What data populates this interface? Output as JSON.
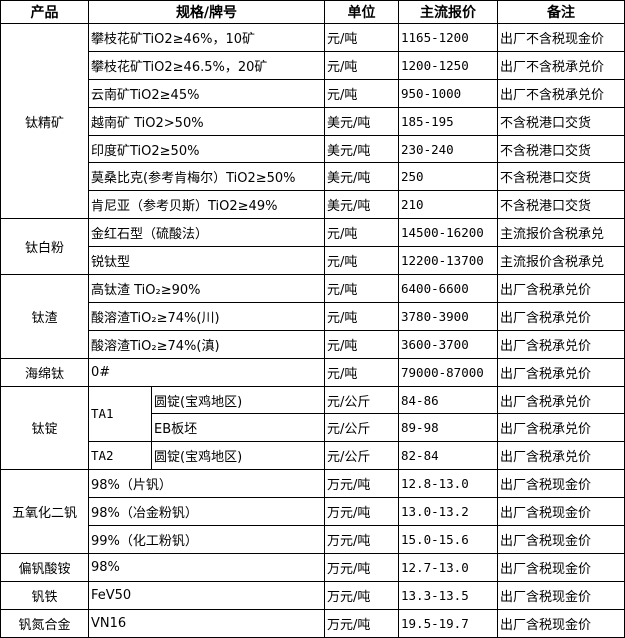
{
  "headers": {
    "product": "产品",
    "spec": "规格/牌号",
    "unit": "单位",
    "price": "主流报价",
    "note": "备注"
  },
  "groups": [
    {
      "product": "钛精矿",
      "rows": [
        {
          "spec": "攀枝花矿TiO2≥46%，10矿",
          "unit": "元/吨",
          "price": "1165-1200",
          "note": "出厂不含税现金价"
        },
        {
          "spec": "攀枝花矿TiO2≥46.5%，20矿",
          "unit": "元/吨",
          "price": "1200-1250",
          "note": "出厂不含税承兑价"
        },
        {
          "spec": "云南矿TiO2≥45%",
          "unit": "元/吨",
          "price": "950-1000",
          "note": "出厂不含税承兑价"
        },
        {
          "spec": "越南矿 TiO2>50%",
          "unit": "美元/吨",
          "price": "185-195",
          "note": "不含税港口交货"
        },
        {
          "spec": "印度矿TiO2≥50%",
          "unit": "美元/吨",
          "price": "230-240",
          "note": "不含税港口交货"
        },
        {
          "spec": "莫桑比克(参考肯梅尔）TiO2≥50%",
          "unit": "美元/吨",
          "price": "250",
          "note": "不含税港口交货"
        },
        {
          "spec": "肯尼亚（参考贝斯）TiO2≥49%",
          "unit": "美元/吨",
          "price": "210",
          "note": "不含税港口交货"
        }
      ]
    },
    {
      "product": "钛白粉",
      "rows": [
        {
          "spec": "金红石型（硫酸法）",
          "unit": "元/吨",
          "price": "14500-16200",
          "note": "主流报价含税承兑"
        },
        {
          "spec": "锐钛型",
          "unit": "元/吨",
          "price": "12200-13700",
          "note": "主流报价含税承兑"
        }
      ]
    },
    {
      "product": "钛渣",
      "rows": [
        {
          "spec": "高钛渣 TiO₂≥90%",
          "unit": "元/吨",
          "price": "6400-6600",
          "note": "出厂含税承兑价"
        },
        {
          "spec": "酸溶渣TiO₂≥74%(川)",
          "unit": "元/吨",
          "price": "3780-3900",
          "note": "出厂含税承兑价"
        },
        {
          "spec": "酸溶渣TiO₂≥74%(滇)",
          "unit": "元/吨",
          "price": "3600-3700",
          "note": "出厂含税承兑价"
        }
      ]
    },
    {
      "product": "海绵钛",
      "rows": [
        {
          "spec": "0#",
          "unit": "元/吨",
          "price": "79000-87000",
          "note": "出厂含税承兑价"
        }
      ]
    },
    {
      "product": "钛锭",
      "rows": [
        {
          "grade": "TA1",
          "grade_span": 2,
          "spec": "圆锭(宝鸡地区)",
          "unit": "元/公斤",
          "price": "84-86",
          "note": "出厂含税承兑价"
        },
        {
          "spec": "EB板坯",
          "unit": "元/公斤",
          "price": "89-98",
          "note": "出厂含税承兑价"
        },
        {
          "grade": "TA2",
          "grade_span": 1,
          "spec": "圆锭(宝鸡地区)",
          "unit": "元/公斤",
          "price": "82-84",
          "note": "出厂含税承兑价"
        }
      ]
    },
    {
      "product": "五氧化二钒",
      "rows": [
        {
          "spec": "98%（片钒）",
          "unit": "万元/吨",
          "price": "12.8-13.0",
          "note": "出厂含税现金价"
        },
        {
          "spec": "98%（冶金粉钒）",
          "unit": "万元/吨",
          "price": "13.0-13.2",
          "note": "出厂含税现金价"
        },
        {
          "spec": "99%（化工粉钒）",
          "unit": "万元/吨",
          "price": "15.0-15.6",
          "note": "出厂含税现金价"
        }
      ]
    },
    {
      "product": "偏钒酸铵",
      "rows": [
        {
          "spec": "98%",
          "unit": "万元/吨",
          "price": "12.7-13.0",
          "note": "出厂含税现金价"
        }
      ]
    },
    {
      "product": "钒铁",
      "rows": [
        {
          "spec": "FeV50",
          "unit": "万元/吨",
          "price": "13.3-13.5",
          "note": "出厂含税现金价"
        }
      ]
    },
    {
      "product": "钒氮合金",
      "rows": [
        {
          "spec": "VN16",
          "unit": "万元/吨",
          "price": "19.5-19.7",
          "note": "出厂含税现金价"
        }
      ]
    }
  ]
}
